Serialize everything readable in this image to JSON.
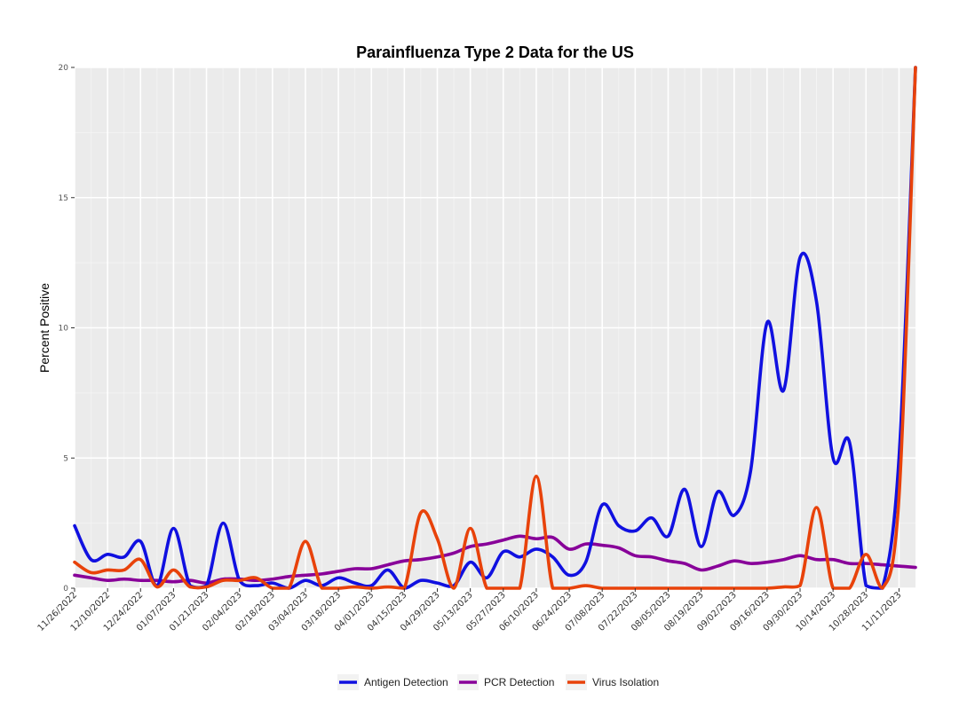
{
  "chart_data": {
    "type": "line",
    "title": "Parainfluenza Type 2 Data for the US",
    "xlabel": "",
    "ylabel": "Percent Positive",
    "ylim": [
      0,
      20
    ],
    "yticks": [
      "0",
      "5",
      "10",
      "15",
      "20"
    ],
    "grid": true,
    "legend_position": "bottom",
    "x": [
      "11/26/2022",
      "12/03/2022",
      "12/10/2022",
      "12/17/2022",
      "12/24/2022",
      "12/31/2022",
      "01/07/2023",
      "01/14/2023",
      "01/21/2023",
      "01/28/2023",
      "02/04/2023",
      "02/11/2023",
      "02/18/2023",
      "02/25/2023",
      "03/04/2023",
      "03/11/2023",
      "03/18/2023",
      "03/25/2023",
      "04/01/2023",
      "04/08/2023",
      "04/15/2023",
      "04/22/2023",
      "04/29/2023",
      "05/06/2023",
      "05/13/2023",
      "05/20/2023",
      "05/27/2023",
      "06/03/2023",
      "06/10/2023",
      "06/17/2023",
      "06/24/2023",
      "07/01/2023",
      "07/08/2023",
      "07/15/2023",
      "07/22/2023",
      "07/29/2023",
      "08/05/2023",
      "08/12/2023",
      "08/19/2023",
      "08/26/2023",
      "09/02/2023",
      "09/09/2023",
      "09/16/2023",
      "09/23/2023",
      "09/30/2023",
      "10/07/2023",
      "10/14/2023",
      "10/21/2023",
      "10/28/2023",
      "11/04/2023",
      "11/11/2023",
      "11/18/2023"
    ],
    "x_tick_labels": [
      "11/26/2022",
      "12/10/2022",
      "12/24/2022",
      "01/07/2023",
      "01/21/2023",
      "02/04/2023",
      "02/18/2023",
      "03/04/2023",
      "03/18/2023",
      "04/01/2023",
      "04/15/2023",
      "04/29/2023",
      "05/13/2023",
      "05/27/2023",
      "06/10/2023",
      "06/24/2023",
      "07/08/2023",
      "07/22/2023",
      "08/05/2023",
      "08/19/2023",
      "09/02/2023",
      "09/16/2023",
      "09/30/2023",
      "10/14/2023",
      "10/28/2023",
      "11/11/2023"
    ],
    "series": [
      {
        "name": "Antigen Detection",
        "color": "#1010e0",
        "values": [
          2.4,
          1.1,
          1.3,
          1.2,
          1.8,
          0.1,
          2.3,
          0.1,
          0.1,
          2.5,
          0.3,
          0.1,
          0.2,
          0.0,
          0.3,
          0.1,
          0.4,
          0.2,
          0.1,
          0.7,
          0.0,
          0.3,
          0.2,
          0.1,
          1.0,
          0.4,
          1.4,
          1.2,
          1.5,
          1.2,
          0.5,
          1.0,
          3.2,
          2.4,
          2.2,
          2.7,
          2.0,
          3.8,
          1.6,
          3.7,
          2.8,
          4.5,
          10.2,
          7.6,
          12.7,
          11.0,
          5.0,
          5.6,
          0.1,
          0.0,
          5.0,
          20.0
        ]
      },
      {
        "name": "PCR Detection",
        "color": "#880099",
        "values": [
          0.5,
          0.4,
          0.3,
          0.35,
          0.3,
          0.3,
          0.25,
          0.3,
          0.2,
          0.35,
          0.35,
          0.3,
          0.35,
          0.45,
          0.5,
          0.55,
          0.65,
          0.75,
          0.75,
          0.9,
          1.05,
          1.1,
          1.2,
          1.35,
          1.6,
          1.7,
          1.85,
          2.0,
          1.9,
          1.95,
          1.5,
          1.7,
          1.65,
          1.55,
          1.25,
          1.2,
          1.05,
          0.95,
          0.7,
          0.85,
          1.05,
          0.95,
          1.0,
          1.1,
          1.25,
          1.1,
          1.1,
          0.95,
          0.95,
          0.9,
          0.85,
          0.8
        ]
      },
      {
        "name": "Virus Isolation",
        "color": "#e8420a",
        "values": [
          1.0,
          0.6,
          0.7,
          0.7,
          1.1,
          0.05,
          0.7,
          0.05,
          0.05,
          0.3,
          0.3,
          0.4,
          0.0,
          0.0,
          1.8,
          0.0,
          0.0,
          0.05,
          0.0,
          0.05,
          0.0,
          2.9,
          1.9,
          0.0,
          2.3,
          0.0,
          0.0,
          0.0,
          4.3,
          0.0,
          0.0,
          0.1,
          0.0,
          0.0,
          0.0,
          0.0,
          0.0,
          0.0,
          0.0,
          0.0,
          0.0,
          0.0,
          0.0,
          0.05,
          0.1,
          3.1,
          0.0,
          0.0,
          1.3,
          0.0,
          3.5,
          20.0
        ]
      }
    ]
  }
}
